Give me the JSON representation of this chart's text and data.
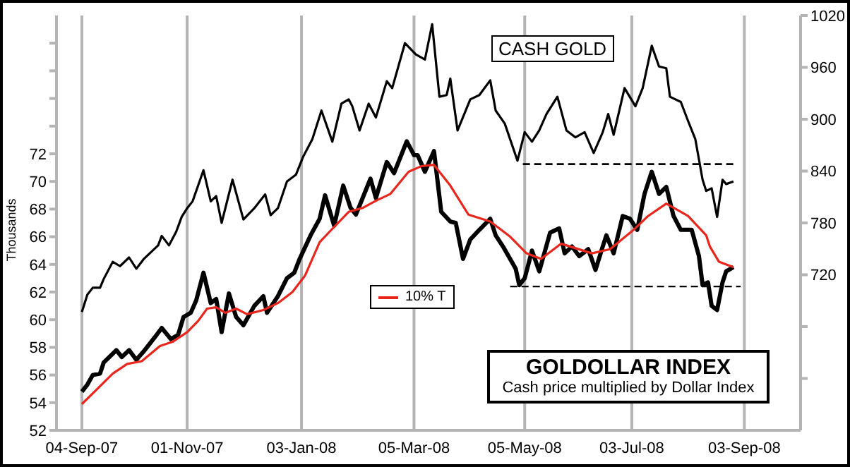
{
  "chart_data": {
    "type": "line",
    "title": "GOLDOLLAR INDEX",
    "subtitle": "Cash price multiplied by Dollar Index",
    "ylabel": "Thousands",
    "annotations": [
      "CASH GOLD"
    ],
    "xlim": [
      "2007-08-21",
      "2008-10-04"
    ],
    "xticks": [
      {
        "value": "2007-09-04",
        "label": "04-Sep-07"
      },
      {
        "value": "2007-11-01",
        "label": "01-Nov-07"
      },
      {
        "value": "2008-01-03",
        "label": "03-Jan-08"
      },
      {
        "value": "2008-03-05",
        "label": "05-Mar-08"
      },
      {
        "value": "2008-05-05",
        "label": "05-May-08"
      },
      {
        "value": "2008-07-03",
        "label": "03-Jul-08"
      },
      {
        "value": "2008-09-03",
        "label": "03-Sep-08"
      }
    ],
    "ylim": [
      52,
      82
    ],
    "yticks": [
      52,
      54,
      56,
      58,
      60,
      62,
      64,
      66,
      68,
      70,
      72,
      {
        "value": 74,
        "label": null
      },
      {
        "value": 76,
        "label": null
      },
      {
        "value": 78,
        "label": null
      },
      {
        "value": 80,
        "label": null
      }
    ],
    "y2lim": [
      540,
      1020
    ],
    "y2ticks": [
      {
        "value": 600,
        "label": null
      },
      {
        "value": 660,
        "label": null
      },
      720,
      780,
      840,
      900,
      960,
      1020
    ],
    "grid": "x",
    "legend": "center left",
    "line_style": "solid",
    "series": [
      {
        "color": "#000000",
        "x": [
          "2007-09-04",
          "2007-09-07",
          "2007-09-10",
          "2007-09-14",
          "2007-09-16",
          "2007-09-23",
          "2007-09-26",
          "2007-09-30",
          "2007-10-04",
          "2007-10-08",
          "2007-10-14",
          "2007-10-18",
          "2007-10-23",
          "2007-10-27",
          "2007-10-30",
          "2007-11-03",
          "2007-11-06",
          "2007-11-10",
          "2007-11-14",
          "2007-11-17",
          "2007-11-20",
          "2007-11-24",
          "2007-11-28",
          "2007-12-02",
          "2007-12-08",
          "2007-12-13",
          "2007-12-15",
          "2007-12-21",
          "2007-12-26",
          "2007-12-30",
          "2008-01-02",
          "2008-01-08",
          "2008-01-13",
          "2008-01-16",
          "2008-01-21",
          "2008-01-26",
          "2008-01-30",
          "2008-02-02",
          "2008-02-10",
          "2008-02-13",
          "2008-02-19",
          "2008-02-23",
          "2008-03-01",
          "2008-03-05",
          "2008-03-07",
          "2008-03-11",
          "2008-03-16",
          "2008-03-20",
          "2008-03-25",
          "2008-03-28",
          "2008-04-01",
          "2008-04-05",
          "2008-04-10",
          "2008-04-16",
          "2008-04-19",
          "2008-04-23",
          "2008-04-30",
          "2008-05-02",
          "2008-05-05",
          "2008-05-09",
          "2008-05-13",
          "2008-05-19",
          "2008-05-24",
          "2008-05-27",
          "2008-05-31",
          "2008-06-04",
          "2008-06-09",
          "2008-06-13",
          "2008-06-17",
          "2008-06-19",
          "2008-06-23",
          "2008-06-28",
          "2008-07-02",
          "2008-07-06",
          "2008-07-10",
          "2008-07-14",
          "2008-07-18",
          "2008-07-22",
          "2008-07-26",
          "2008-07-30",
          "2008-08-05",
          "2008-08-09",
          "2008-08-11",
          "2008-08-14",
          "2008-08-16",
          "2008-08-19",
          "2008-08-22",
          "2008-08-24",
          "2008-08-28"
        ],
        "values": [
          54.8,
          55.3,
          56.0,
          56.1,
          56.9,
          57.8,
          57.3,
          57.8,
          57.1,
          57.7,
          58.7,
          59.4,
          58.6,
          58.9,
          60.2,
          60.5,
          61.4,
          63.4,
          61.2,
          61.5,
          59.1,
          61.9,
          60.2,
          59.6,
          61.0,
          61.7,
          60.5,
          61.7,
          63.0,
          63.4,
          64.4,
          66.1,
          67.3,
          69.0,
          66.8,
          69.7,
          68.1,
          67.6,
          70.2,
          68.8,
          71.4,
          70.6,
          72.9,
          71.9,
          71.9,
          70.7,
          72.2,
          67.8,
          67.1,
          67.0,
          64.4,
          65.8,
          66.5,
          67.3,
          66.1,
          65.3,
          63.7,
          62.5,
          63.0,
          65.0,
          63.5,
          66.3,
          66.6,
          64.8,
          65.3,
          64.6,
          65.1,
          63.6,
          65.3,
          66.1,
          64.8,
          67.5,
          67.3,
          66.5,
          69.1,
          70.7,
          69.1,
          69.6,
          67.5,
          66.5,
          66.5,
          64.6,
          62.5,
          62.7,
          61.0,
          60.7,
          62.7,
          63.5,
          63.8
        ]
      },
      {
        "name": "10% T",
        "color": "#e8261c",
        "x": [
          "2007-09-04",
          "2007-09-11",
          "2007-09-21",
          "2007-09-29",
          "2007-10-07",
          "2007-10-17",
          "2007-10-24",
          "2007-11-01",
          "2007-11-07",
          "2007-11-12",
          "2007-11-17",
          "2007-11-22",
          "2007-11-28",
          "2007-12-04",
          "2007-12-13",
          "2007-12-21",
          "2007-12-29",
          "2008-01-05",
          "2008-01-13",
          "2008-01-18",
          "2008-01-29",
          "2008-02-06",
          "2008-02-13",
          "2008-02-21",
          "2008-03-02",
          "2008-03-09",
          "2008-03-16",
          "2008-03-25",
          "2008-04-04",
          "2008-04-16",
          "2008-04-27",
          "2008-05-06",
          "2008-05-14",
          "2008-05-25",
          "2008-06-11",
          "2008-06-21",
          "2008-07-04",
          "2008-07-12",
          "2008-07-22",
          "2008-08-03",
          "2008-08-13",
          "2008-08-15",
          "2008-08-20",
          "2008-08-28"
        ],
        "values": [
          53.9,
          54.8,
          56.1,
          56.8,
          57.0,
          58.1,
          58.4,
          59.1,
          59.9,
          60.8,
          60.9,
          60.5,
          60.8,
          60.4,
          60.7,
          61.2,
          62.0,
          63.2,
          65.6,
          66.3,
          67.8,
          68.1,
          68.6,
          69.1,
          70.7,
          71.1,
          71.2,
          69.7,
          67.6,
          67.1,
          66.0,
          64.8,
          64.4,
          65.5,
          64.8,
          65.1,
          66.5,
          67.5,
          68.4,
          67.5,
          66.1,
          65.3,
          64.2,
          63.8
        ]
      },
      {
        "color": "#000000",
        "axis": "y2",
        "x": [
          "2007-09-04",
          "2007-09-07",
          "2007-09-10",
          "2007-09-14",
          "2007-09-16",
          "2007-09-21",
          "2007-09-25",
          "2007-09-30",
          "2007-10-04",
          "2007-10-08",
          "2007-10-16",
          "2007-10-18",
          "2007-10-22",
          "2007-10-26",
          "2007-10-29",
          "2007-11-01",
          "2007-11-04",
          "2007-11-10",
          "2007-11-14",
          "2007-11-17",
          "2007-11-20",
          "2007-11-26",
          "2007-12-02",
          "2007-12-08",
          "2007-12-14",
          "2007-12-17",
          "2007-12-21",
          "2007-12-26",
          "2007-12-31",
          "2008-01-04",
          "2008-01-09",
          "2008-01-14",
          "2008-01-20",
          "2008-01-25",
          "2008-01-29",
          "2008-01-31",
          "2008-02-04",
          "2008-02-09",
          "2008-02-13",
          "2008-02-19",
          "2008-02-22",
          "2008-02-29",
          "2008-03-06",
          "2008-03-11",
          "2008-03-15",
          "2008-03-19",
          "2008-03-23",
          "2008-03-25",
          "2008-03-29",
          "2008-04-05",
          "2008-04-10",
          "2008-04-16",
          "2008-04-19",
          "2008-04-24",
          "2008-05-01",
          "2008-05-05",
          "2008-05-09",
          "2008-05-13",
          "2008-05-17",
          "2008-05-23",
          "2008-05-28",
          "2008-06-02",
          "2008-06-07",
          "2008-06-12",
          "2008-06-17",
          "2008-06-20",
          "2008-06-23",
          "2008-06-29",
          "2008-07-05",
          "2008-07-09",
          "2008-07-14",
          "2008-07-18",
          "2008-07-22",
          "2008-07-24",
          "2008-07-30",
          "2008-08-03",
          "2008-08-07",
          "2008-08-11",
          "2008-08-13",
          "2008-08-16",
          "2008-08-19",
          "2008-08-22",
          "2008-08-24",
          "2008-08-28"
        ],
        "values": [
          677,
          697,
          705,
          705,
          715,
          735,
          730,
          740,
          727,
          738,
          754,
          765,
          754,
          770,
          787,
          797,
          805,
          841,
          805,
          811,
          780,
          830,
          784,
          797,
          813,
          789,
          797,
          828,
          836,
          857,
          877,
          910,
          874,
          918,
          923,
          915,
          887,
          918,
          902,
          944,
          936,
          988,
          975,
          969,
          1010,
          926,
          928,
          947,
          887,
          923,
          928,
          945,
          910,
          895,
          852,
          885,
          874,
          887,
          906,
          926,
          887,
          879,
          885,
          861,
          885,
          906,
          882,
          936,
          915,
          936,
          985,
          961,
          959,
          926,
          920,
          898,
          877,
          830,
          817,
          820,
          787,
          830,
          825,
          828
        ]
      },
      {
        "color": "#000000",
        "axis": "y2",
        "line_style": "dashed",
        "x": [
          "2008-05-04",
          "2008-08-30"
        ],
        "values": [
          848,
          848
        ]
      },
      {
        "color": "#000000",
        "line_style": "dashed",
        "x": [
          "2008-04-27",
          "2008-09-01"
        ],
        "values": [
          62.4,
          62.4
        ]
      }
    ]
  }
}
